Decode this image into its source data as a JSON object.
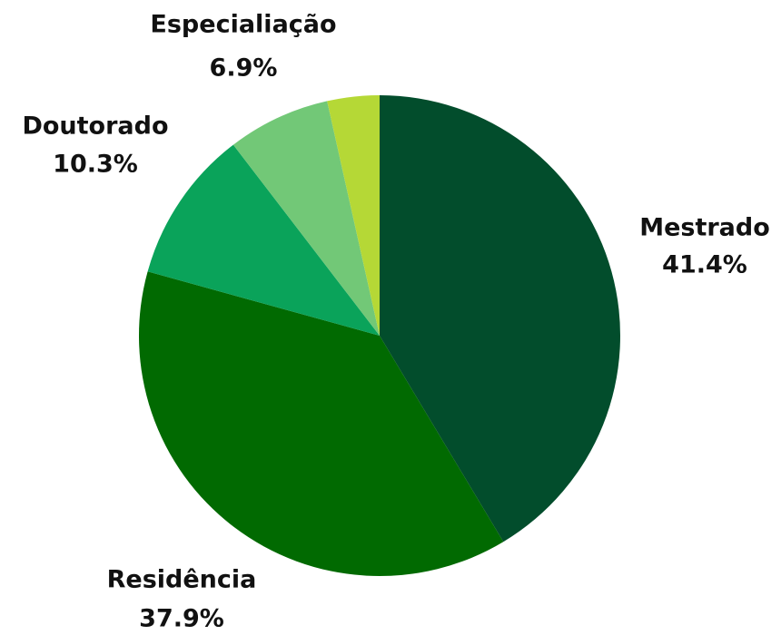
{
  "chart_data": {
    "type": "pie",
    "categories": [
      "Mestrado",
      "Residência",
      "Doutorado",
      "Especialiação",
      null
    ],
    "values": [
      41.4,
      37.9,
      10.3,
      6.9,
      3.5
    ],
    "value_labels": [
      "41.4%",
      "37.9%",
      "10.3%",
      "6.9%",
      null
    ],
    "colors": [
      "#024d2c",
      "#016a01",
      "#0aa35a",
      "#72c877",
      "#b5d836"
    ]
  }
}
